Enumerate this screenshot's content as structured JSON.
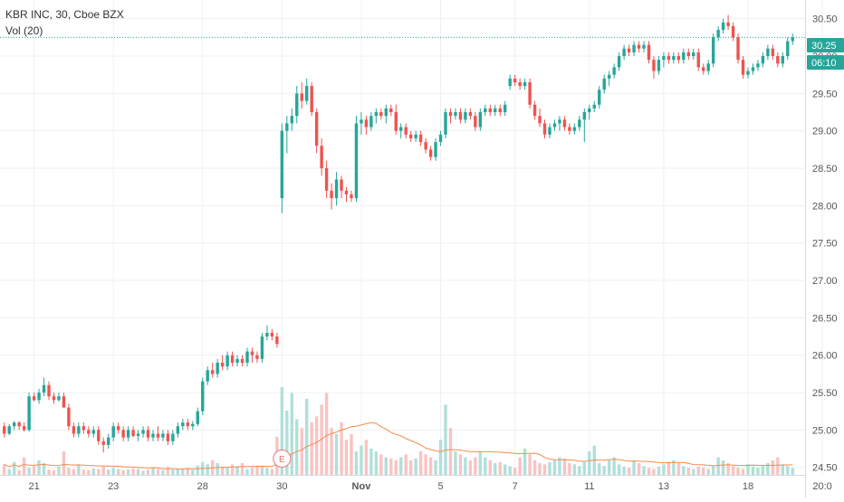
{
  "header": {
    "title": "KBR INC, 30, Cboe BZX",
    "volume_indicator": "Vol (20)"
  },
  "price_scale": {
    "tick_labels": [
      "30.50",
      "30.00",
      "29.50",
      "29.00",
      "28.50",
      "28.00",
      "27.50",
      "27.00",
      "26.50",
      "26.00",
      "25.50",
      "25.00",
      "24.50"
    ]
  },
  "price_badges": {
    "last_price": "30.25",
    "countdown": "06:10"
  },
  "time_scale": {
    "labels": [
      {
        "text": "21",
        "bar": 6
      },
      {
        "text": "23",
        "bar": 22
      },
      {
        "text": "28",
        "bar": 40
      },
      {
        "text": "30",
        "bar": 56
      },
      {
        "text": "Nov",
        "bar": 72
      },
      {
        "text": "5",
        "bar": 88
      },
      {
        "text": "7",
        "bar": 103
      },
      {
        "text": "11",
        "bar": 118
      },
      {
        "text": "13",
        "bar": 133
      },
      {
        "text": "18",
        "bar": 150
      },
      {
        "text": "20:0",
        "bar": 165
      }
    ]
  },
  "earnings_marker": {
    "label": "E",
    "bar": 56
  },
  "colors": {
    "up": "#26a69a",
    "down": "#ef5350",
    "vol_up": "#b2dfdb",
    "vol_down": "#f8c4c3",
    "vol_ma": "#f58c4b",
    "last_price": "#26a69a",
    "grid": "#eef0f3",
    "axis_text": "#555555"
  },
  "chart_data": {
    "type": "candlestick",
    "symbol": "KBR INC",
    "interval": "30",
    "exchange": "Cboe BZX",
    "ylim": [
      24.4,
      30.75
    ],
    "last_price": 30.25,
    "ohlc": [
      [
        25.05,
        25.1,
        24.9,
        24.95
      ],
      [
        24.95,
        25.08,
        24.93,
        25.05
      ],
      [
        25.05,
        25.12,
        25.0,
        25.1
      ],
      [
        25.1,
        25.12,
        25.0,
        25.05
      ],
      [
        25.05,
        25.1,
        24.98,
        25.0
      ],
      [
        25.0,
        25.5,
        24.98,
        25.45
      ],
      [
        25.45,
        25.5,
        25.38,
        25.4
      ],
      [
        25.4,
        25.55,
        25.35,
        25.5
      ],
      [
        25.5,
        25.7,
        25.45,
        25.6
      ],
      [
        25.6,
        25.65,
        25.4,
        25.45
      ],
      [
        25.45,
        25.5,
        25.35,
        25.4
      ],
      [
        25.4,
        25.5,
        25.38,
        25.45
      ],
      [
        25.45,
        25.5,
        25.3,
        25.3
      ],
      [
        25.3,
        25.35,
        25.0,
        25.05
      ],
      [
        25.05,
        25.1,
        24.9,
        24.95
      ],
      [
        24.95,
        25.1,
        24.9,
        25.05
      ],
      [
        25.05,
        25.1,
        24.95,
        25.0
      ],
      [
        25.0,
        25.05,
        24.9,
        24.95
      ],
      [
        24.95,
        25.05,
        24.9,
        25.0
      ],
      [
        25.0,
        25.05,
        24.8,
        24.85
      ],
      [
        24.85,
        24.9,
        24.7,
        24.8
      ],
      [
        24.8,
        24.95,
        24.75,
        24.9
      ],
      [
        24.9,
        25.1,
        24.85,
        25.05
      ],
      [
        25.05,
        25.1,
        24.95,
        25.0
      ],
      [
        25.0,
        25.05,
        24.85,
        24.9
      ],
      [
        24.9,
        25.05,
        24.85,
        25.0
      ],
      [
        25.0,
        25.05,
        24.9,
        24.92
      ],
      [
        24.92,
        25.0,
        24.85,
        24.95
      ],
      [
        24.95,
        25.05,
        24.9,
        25.0
      ],
      [
        25.0,
        25.05,
        24.85,
        24.9
      ],
      [
        24.9,
        25.0,
        24.85,
        24.95
      ],
      [
        24.95,
        25.05,
        24.85,
        24.9
      ],
      [
        24.9,
        25.0,
        24.85,
        24.95
      ],
      [
        24.95,
        25.0,
        24.8,
        24.85
      ],
      [
        24.85,
        25.0,
        24.8,
        24.95
      ],
      [
        24.95,
        25.1,
        24.9,
        25.05
      ],
      [
        25.05,
        25.15,
        25.0,
        25.1
      ],
      [
        25.1,
        25.15,
        25.0,
        25.05
      ],
      [
        25.05,
        25.12,
        25.0,
        25.08
      ],
      [
        25.08,
        25.3,
        25.05,
        25.25
      ],
      [
        25.25,
        25.7,
        25.2,
        25.65
      ],
      [
        25.65,
        25.85,
        25.6,
        25.8
      ],
      [
        25.8,
        25.9,
        25.7,
        25.75
      ],
      [
        25.75,
        25.95,
        25.7,
        25.9
      ],
      [
        25.9,
        26.0,
        25.8,
        25.85
      ],
      [
        25.85,
        26.05,
        25.8,
        26.0
      ],
      [
        26.0,
        26.05,
        25.85,
        25.9
      ],
      [
        25.9,
        26.0,
        25.85,
        25.95
      ],
      [
        25.95,
        26.0,
        25.85,
        25.9
      ],
      [
        25.9,
        26.1,
        25.85,
        26.05
      ],
      [
        26.05,
        26.1,
        25.9,
        26.0
      ],
      [
        26.0,
        26.05,
        25.9,
        25.95
      ],
      [
        25.95,
        26.3,
        25.9,
        26.25
      ],
      [
        26.25,
        26.4,
        26.2,
        26.3
      ],
      [
        26.3,
        26.35,
        26.2,
        26.25
      ],
      [
        26.25,
        26.3,
        26.1,
        26.15
      ],
      [
        28.1,
        29.1,
        27.9,
        29.0
      ],
      [
        29.0,
        29.2,
        28.7,
        29.1
      ],
      [
        29.1,
        29.3,
        29.0,
        29.2
      ],
      [
        29.2,
        29.6,
        29.1,
        29.5
      ],
      [
        29.5,
        29.65,
        29.3,
        29.4
      ],
      [
        29.4,
        29.7,
        29.35,
        29.6
      ],
      [
        29.6,
        29.65,
        29.2,
        29.25
      ],
      [
        29.25,
        29.3,
        28.7,
        28.8
      ],
      [
        28.8,
        28.9,
        28.4,
        28.5
      ],
      [
        28.5,
        28.6,
        28.1,
        28.2
      ],
      [
        28.2,
        28.3,
        27.95,
        28.1
      ],
      [
        28.1,
        28.45,
        28.0,
        28.35
      ],
      [
        28.35,
        28.4,
        28.1,
        28.2
      ],
      [
        28.2,
        28.25,
        28.05,
        28.15
      ],
      [
        28.15,
        28.2,
        28.05,
        28.1
      ],
      [
        28.1,
        29.2,
        28.05,
        29.1
      ],
      [
        29.1,
        29.25,
        28.95,
        29.15
      ],
      [
        29.15,
        29.2,
        28.95,
        29.05
      ],
      [
        29.05,
        29.25,
        29.0,
        29.2
      ],
      [
        29.2,
        29.3,
        29.1,
        29.25
      ],
      [
        29.25,
        29.3,
        29.15,
        29.2
      ],
      [
        29.2,
        29.35,
        29.1,
        29.3
      ],
      [
        29.3,
        29.35,
        29.2,
        29.25
      ],
      [
        29.25,
        29.35,
        28.95,
        29.0
      ],
      [
        29.0,
        29.1,
        28.9,
        29.05
      ],
      [
        29.05,
        29.1,
        28.9,
        28.95
      ],
      [
        28.95,
        29.0,
        28.85,
        28.9
      ],
      [
        28.9,
        29.0,
        28.85,
        28.95
      ],
      [
        28.95,
        29.0,
        28.8,
        28.85
      ],
      [
        28.85,
        28.9,
        28.7,
        28.75
      ],
      [
        28.75,
        28.8,
        28.6,
        28.65
      ],
      [
        28.65,
        28.9,
        28.6,
        28.85
      ],
      [
        28.85,
        29.0,
        28.8,
        28.95
      ],
      [
        28.95,
        29.3,
        28.9,
        29.25
      ],
      [
        29.25,
        29.3,
        29.1,
        29.2
      ],
      [
        29.2,
        29.3,
        29.15,
        29.25
      ],
      [
        29.25,
        29.3,
        29.1,
        29.15
      ],
      [
        29.15,
        29.3,
        29.1,
        29.25
      ],
      [
        29.25,
        29.3,
        29.15,
        29.2
      ],
      [
        29.2,
        29.25,
        29.0,
        29.05
      ],
      [
        29.05,
        29.3,
        29.0,
        29.25
      ],
      [
        29.25,
        29.35,
        29.2,
        29.3
      ],
      [
        29.3,
        29.35,
        29.2,
        29.25
      ],
      [
        29.25,
        29.35,
        29.2,
        29.3
      ],
      [
        29.3,
        29.35,
        29.2,
        29.25
      ],
      [
        29.25,
        29.4,
        29.2,
        29.35
      ],
      [
        29.6,
        29.75,
        29.55,
        29.7
      ],
      [
        29.7,
        29.75,
        29.6,
        29.65
      ],
      [
        29.65,
        29.7,
        29.55,
        29.6
      ],
      [
        29.6,
        29.7,
        29.55,
        29.65
      ],
      [
        29.65,
        29.7,
        29.3,
        29.35
      ],
      [
        29.35,
        29.4,
        29.15,
        29.2
      ],
      [
        29.2,
        29.3,
        29.05,
        29.1
      ],
      [
        29.1,
        29.15,
        28.9,
        28.95
      ],
      [
        28.95,
        29.1,
        28.9,
        29.05
      ],
      [
        29.05,
        29.15,
        29.0,
        29.1
      ],
      [
        29.1,
        29.2,
        29.0,
        29.15
      ],
      [
        29.15,
        29.2,
        29.0,
        29.05
      ],
      [
        29.05,
        29.1,
        28.95,
        29.0
      ],
      [
        29.0,
        29.1,
        28.95,
        29.05
      ],
      [
        29.05,
        29.2,
        29.0,
        29.15
      ],
      [
        29.15,
        29.3,
        28.85,
        29.25
      ],
      [
        29.25,
        29.35,
        29.15,
        29.3
      ],
      [
        29.3,
        29.4,
        29.25,
        29.35
      ],
      [
        29.35,
        29.6,
        29.3,
        29.55
      ],
      [
        29.55,
        29.75,
        29.5,
        29.7
      ],
      [
        29.7,
        29.8,
        29.6,
        29.75
      ],
      [
        29.75,
        29.9,
        29.7,
        29.85
      ],
      [
        29.85,
        30.05,
        29.8,
        30.0
      ],
      [
        30.0,
        30.15,
        29.95,
        30.1
      ],
      [
        30.1,
        30.15,
        30.0,
        30.05
      ],
      [
        30.05,
        30.2,
        30.0,
        30.15
      ],
      [
        30.15,
        30.2,
        30.05,
        30.1
      ],
      [
        30.1,
        30.2,
        30.05,
        30.15
      ],
      [
        30.15,
        30.2,
        29.9,
        29.95
      ],
      [
        29.95,
        30.0,
        29.7,
        29.8
      ],
      [
        29.8,
        30.0,
        29.75,
        29.95
      ],
      [
        29.95,
        30.05,
        29.85,
        30.0
      ],
      [
        30.0,
        30.05,
        29.9,
        29.95
      ],
      [
        29.95,
        30.05,
        29.9,
        30.0
      ],
      [
        30.0,
        30.05,
        29.9,
        29.95
      ],
      [
        29.95,
        30.1,
        29.9,
        30.05
      ],
      [
        30.05,
        30.1,
        29.95,
        30.0
      ],
      [
        30.0,
        30.1,
        29.95,
        30.05
      ],
      [
        30.05,
        30.1,
        29.8,
        29.85
      ],
      [
        29.85,
        29.9,
        29.75,
        29.8
      ],
      [
        29.8,
        29.95,
        29.75,
        29.9
      ],
      [
        29.9,
        30.3,
        29.85,
        30.25
      ],
      [
        30.25,
        30.4,
        30.2,
        30.35
      ],
      [
        30.35,
        30.5,
        30.3,
        30.45
      ],
      [
        30.45,
        30.55,
        30.35,
        30.4
      ],
      [
        30.4,
        30.45,
        30.2,
        30.25
      ],
      [
        30.25,
        30.3,
        29.9,
        29.95
      ],
      [
        29.95,
        30.0,
        29.7,
        29.75
      ],
      [
        29.75,
        29.85,
        29.7,
        29.8
      ],
      [
        29.8,
        29.9,
        29.75,
        29.85
      ],
      [
        29.85,
        29.95,
        29.8,
        29.9
      ],
      [
        29.9,
        30.05,
        29.85,
        30.0
      ],
      [
        30.0,
        30.15,
        29.95,
        30.1
      ],
      [
        30.1,
        30.15,
        29.95,
        30.0
      ],
      [
        30.0,
        30.05,
        29.85,
        29.9
      ],
      [
        29.9,
        30.05,
        29.85,
        30.0
      ],
      [
        30.0,
        30.25,
        29.95,
        30.2
      ],
      [
        30.2,
        30.3,
        30.15,
        30.25
      ]
    ],
    "volume": [
      18,
      10,
      22,
      8,
      30,
      12,
      15,
      25,
      20,
      9,
      8,
      14,
      40,
      12,
      10,
      18,
      9,
      8,
      11,
      10,
      14,
      9,
      12,
      10,
      8,
      9,
      11,
      10,
      7,
      9,
      12,
      10,
      8,
      14,
      9,
      11,
      10,
      12,
      9,
      16,
      22,
      18,
      25,
      20,
      14,
      12,
      18,
      15,
      20,
      10,
      12,
      16,
      14,
      12,
      10,
      65,
      150,
      110,
      140,
      95,
      80,
      130,
      90,
      100,
      120,
      140,
      80,
      70,
      90,
      60,
      70,
      40,
      50,
      60,
      45,
      40,
      35,
      30,
      28,
      25,
      30,
      35,
      25,
      28,
      40,
      35,
      30,
      25,
      60,
      120,
      80,
      40,
      35,
      30,
      25,
      30,
      40,
      30,
      25,
      20,
      22,
      18,
      15,
      12,
      30,
      45,
      35,
      25,
      20,
      18,
      22,
      25,
      30,
      28,
      20,
      18,
      15,
      22,
      40,
      50,
      20,
      15,
      25,
      30,
      18,
      14,
      12,
      25,
      20,
      15,
      12,
      10,
      14,
      18,
      22,
      25,
      20,
      15,
      12,
      10,
      14,
      12,
      10,
      15,
      30,
      25,
      20,
      15,
      12,
      10,
      18,
      14,
      12,
      15,
      20,
      25,
      30,
      18,
      15,
      12
    ],
    "volume_ma_period": 20,
    "volume_max": 170
  }
}
